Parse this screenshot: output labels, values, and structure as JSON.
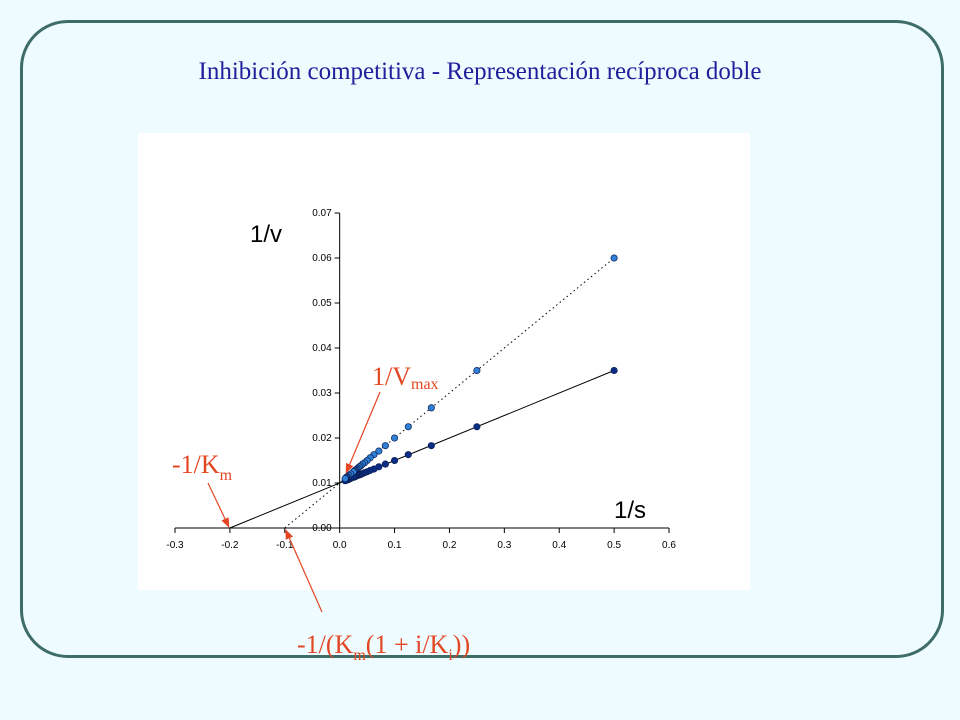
{
  "title": "Inhibición competitiva - Representación recíproca doble",
  "chart_data": {
    "type": "scatter",
    "title": "Inhibición competitiva - Representación recíproca doble",
    "xlabel": "1/s",
    "ylabel": "1/v",
    "xlim": [
      -0.3,
      0.6
    ],
    "ylim": [
      0.0,
      0.07
    ],
    "x_ticks": [
      "-0.3",
      "-0.2",
      "-0.1",
      "0.0",
      "0.1",
      "0.2",
      "0.3",
      "0.4",
      "0.5",
      "0.6"
    ],
    "y_ticks": [
      "0.00",
      "0.01",
      "0.02",
      "0.03",
      "0.04",
      "0.05",
      "0.06",
      "0.07"
    ],
    "grid": false,
    "series": [
      {
        "color": "#0b2d83",
        "line": "solid",
        "x": [
          0.5,
          0.25,
          0.167,
          0.125,
          0.1,
          0.0833,
          0.0714,
          0.0625,
          0.0556,
          0.05,
          0.0455,
          0.0417,
          0.0385,
          0.0357,
          0.0333,
          0.03125,
          0.0294,
          0.0278,
          0.0263,
          0.025,
          0.02,
          0.0167,
          0.0143,
          0.0125,
          0.0111,
          0.01
        ],
        "y": [
          0.035,
          0.0225,
          0.0183,
          0.0163,
          0.015,
          0.0142,
          0.0136,
          0.0131,
          0.0128,
          0.0125,
          0.0123,
          0.0121,
          0.0119,
          0.0118,
          0.0117,
          0.0116,
          0.0115,
          0.0114,
          0.0113,
          0.0113,
          0.011,
          0.0108,
          0.0107,
          0.0106,
          0.0106,
          0.0105
        ],
        "extrapolated_to": [
          -0.2,
          0.0
        ]
      },
      {
        "color": "#2f7fd6",
        "line": "dotted",
        "x": [
          0.5,
          0.25,
          0.167,
          0.125,
          0.1,
          0.0833,
          0.0714,
          0.0625,
          0.0556,
          0.05,
          0.0455,
          0.0417,
          0.0385,
          0.0357,
          0.0333,
          0.03125,
          0.0294,
          0.0278,
          0.0263,
          0.025,
          0.02,
          0.0167,
          0.0143,
          0.0125,
          0.0111,
          0.01
        ],
        "y": [
          0.06,
          0.035,
          0.0267,
          0.0225,
          0.02,
          0.0183,
          0.0171,
          0.0163,
          0.0156,
          0.015,
          0.0145,
          0.0142,
          0.0138,
          0.0136,
          0.0133,
          0.0131,
          0.0129,
          0.0128,
          0.0126,
          0.0125,
          0.012,
          0.0117,
          0.0114,
          0.0113,
          0.0111,
          0.011
        ],
        "extrapolated_to": [
          -0.1,
          0.0
        ]
      }
    ],
    "annotations": [
      {
        "text": "1/V",
        "sub": "max",
        "points_to": [
          0.01,
          0.0105
        ]
      },
      {
        "text": "-1/K",
        "sub": "m",
        "points_to": [
          -0.2,
          0.0
        ]
      },
      {
        "text": "-1/(K",
        "sub": "m",
        "text2": "(1 + i/K",
        "sub2": "i",
        "text3": "))",
        "points_to": [
          -0.1,
          0.0
        ]
      }
    ],
    "arrow_color": "#e34623"
  }
}
